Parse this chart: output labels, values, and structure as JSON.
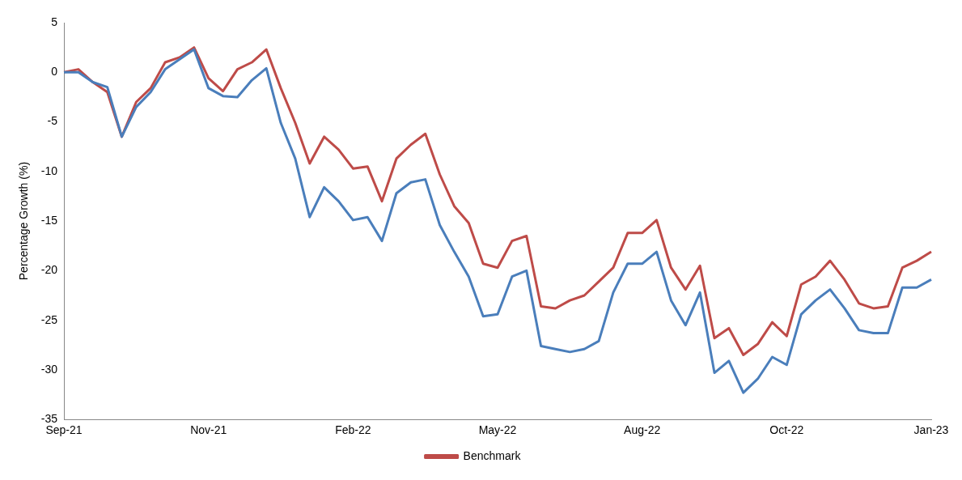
{
  "chart_data": {
    "type": "line",
    "ylabel": "Percentage Growth (%)",
    "categories": [
      "Sep-21",
      null,
      null,
      null,
      null,
      null,
      null,
      null,
      null,
      null,
      "Nov-21",
      null,
      null,
      null,
      null,
      null,
      null,
      null,
      null,
      null,
      "Feb-22",
      null,
      null,
      null,
      null,
      null,
      null,
      null,
      null,
      null,
      "May-22",
      null,
      null,
      null,
      null,
      null,
      null,
      null,
      null,
      null,
      "Aug-22",
      null,
      null,
      null,
      null,
      null,
      null,
      null,
      null,
      null,
      "Oct-22",
      null,
      null,
      null,
      null,
      null,
      null,
      null,
      null,
      null,
      "Jan-23"
    ],
    "series": [
      {
        "color": "#4a7ebb",
        "values": [
          0,
          0,
          -1,
          -1.5,
          -6.5,
          -3.5,
          -2,
          0.3,
          1.3,
          2.3,
          -1.6,
          -2.4,
          -2.5,
          -0.8,
          0.4,
          -5.1,
          -8.7,
          -14.6,
          -11.6,
          -13,
          -14.9,
          -14.6,
          -17,
          -12.2,
          -11.1,
          -10.8,
          -15.4,
          -18.1,
          -20.6,
          -24.6,
          -24.4,
          -20.6,
          -20,
          -27.6,
          -27.9,
          -28.2,
          -27.9,
          -27.1,
          -22.2,
          -19.3,
          -19.3,
          -18.1,
          -23,
          -25.5,
          -22.2,
          -30.3,
          -29.1,
          -32.3,
          -30.9,
          -28.7,
          -29.5,
          -24.4,
          -23,
          -21.9,
          -23.8,
          -26,
          -26.3,
          -26.3,
          -21.7,
          -21.7,
          -20.9
        ]
      },
      {
        "name": "Benchmark",
        "color": "#be4b48",
        "values": [
          0,
          0.3,
          -1,
          -2,
          -6.5,
          -3,
          -1.6,
          1.0,
          1.5,
          2.5,
          -0.6,
          -1.9,
          0.3,
          1.0,
          2.3,
          -1.6,
          -5.1,
          -9.2,
          -6.5,
          -7.8,
          -9.7,
          -9.5,
          -13,
          -8.7,
          -7.3,
          -6.2,
          -10.3,
          -13.5,
          -15.2,
          -19.3,
          -19.7,
          -17,
          -16.5,
          -23.6,
          -23.8,
          -23,
          -22.5,
          -21.1,
          -19.7,
          -16.2,
          -16.2,
          -14.9,
          -19.7,
          -21.9,
          -19.5,
          -26.8,
          -25.8,
          -28.5,
          -27.4,
          -25.2,
          -26.6,
          -21.4,
          -20.6,
          -19,
          -20.9,
          -23.3,
          -23.8,
          -23.6,
          -19.7,
          -19,
          -18.1
        ]
      }
    ],
    "ylim": [
      -35,
      5
    ],
    "yticks": [
      -35,
      -30,
      -25,
      -20,
      -15,
      -10,
      -5,
      0,
      5
    ],
    "grid": false,
    "legend": "bottom",
    "marker": "none",
    "line_style": "solid"
  }
}
